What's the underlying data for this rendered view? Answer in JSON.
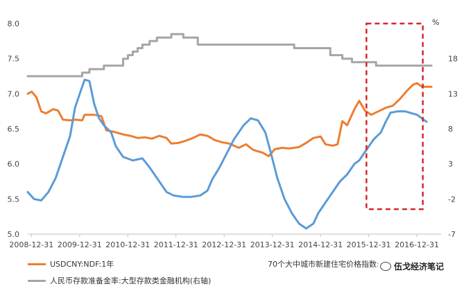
{
  "chart_data": {
    "type": "line",
    "x_ticks": [
      "2008-12-31",
      "2009-12-31",
      "2010-12-31",
      "2011-12-31",
      "2012-12-31",
      "2013-12-31",
      "2014-12-31",
      "2015-12-31",
      "2016-12-31"
    ],
    "x_range": [
      2008.92,
      2017.5
    ],
    "y_left": {
      "range": [
        5.0,
        8.0
      ],
      "ticks": [
        "5.0",
        "5.5",
        "6.0",
        "6.5",
        "7.0",
        "7.5",
        "8.0"
      ]
    },
    "y_right": {
      "range": [
        -7,
        23
      ],
      "ticks": [
        "-7",
        "-2",
        "3",
        "8",
        "13",
        "18",
        "23"
      ],
      "unit": "%"
    },
    "series": [
      {
        "name": "USDCNY:NDF:1年",
        "axis": "left",
        "color": "#ED7D31",
        "points": [
          [
            2008.92,
            7.0
          ],
          [
            2009.0,
            7.03
          ],
          [
            2009.1,
            6.95
          ],
          [
            2009.2,
            6.75
          ],
          [
            2009.3,
            6.72
          ],
          [
            2009.45,
            6.78
          ],
          [
            2009.55,
            6.76
          ],
          [
            2009.65,
            6.63
          ],
          [
            2009.8,
            6.62
          ],
          [
            2009.92,
            6.63
          ],
          [
            2010.05,
            6.62
          ],
          [
            2010.1,
            6.7
          ],
          [
            2010.3,
            6.7
          ],
          [
            2010.45,
            6.68
          ],
          [
            2010.55,
            6.48
          ],
          [
            2010.7,
            6.46
          ],
          [
            2010.9,
            6.42
          ],
          [
            2011.05,
            6.4
          ],
          [
            2011.2,
            6.37
          ],
          [
            2011.35,
            6.38
          ],
          [
            2011.5,
            6.36
          ],
          [
            2011.65,
            6.4
          ],
          [
            2011.8,
            6.37
          ],
          [
            2011.9,
            6.29
          ],
          [
            2012.05,
            6.3
          ],
          [
            2012.2,
            6.33
          ],
          [
            2012.35,
            6.37
          ],
          [
            2012.5,
            6.42
          ],
          [
            2012.65,
            6.4
          ],
          [
            2012.8,
            6.34
          ],
          [
            2012.95,
            6.31
          ],
          [
            2013.1,
            6.29
          ],
          [
            2013.3,
            6.23
          ],
          [
            2013.45,
            6.28
          ],
          [
            2013.6,
            6.2
          ],
          [
            2013.8,
            6.16
          ],
          [
            2013.92,
            6.11
          ],
          [
            2014.05,
            6.21
          ],
          [
            2014.2,
            6.23
          ],
          [
            2014.35,
            6.22
          ],
          [
            2014.55,
            6.24
          ],
          [
            2014.7,
            6.3
          ],
          [
            2014.85,
            6.37
          ],
          [
            2015.0,
            6.39
          ],
          [
            2015.1,
            6.28
          ],
          [
            2015.25,
            6.26
          ],
          [
            2015.35,
            6.28
          ],
          [
            2015.45,
            6.61
          ],
          [
            2015.55,
            6.55
          ],
          [
            2015.7,
            6.78
          ],
          [
            2015.8,
            6.9
          ],
          [
            2015.92,
            6.76
          ],
          [
            2016.05,
            6.7
          ],
          [
            2016.2,
            6.75
          ],
          [
            2016.35,
            6.8
          ],
          [
            2016.5,
            6.83
          ],
          [
            2016.65,
            6.93
          ],
          [
            2016.8,
            7.05
          ],
          [
            2016.92,
            7.13
          ],
          [
            2017.0,
            7.15
          ],
          [
            2017.1,
            7.1
          ],
          [
            2017.3,
            7.1
          ]
        ]
      },
      {
        "name": "70个大中城市新建住宅价格指数:同比(右轴)",
        "axis": "right",
        "color": "#5B9BD5",
        "points": [
          [
            2008.92,
            -1.0
          ],
          [
            2009.05,
            -2.0
          ],
          [
            2009.2,
            -2.2
          ],
          [
            2009.35,
            -1.0
          ],
          [
            2009.5,
            1.0
          ],
          [
            2009.65,
            4.0
          ],
          [
            2009.8,
            7.0
          ],
          [
            2009.9,
            11.0
          ],
          [
            2010.0,
            13.0
          ],
          [
            2010.1,
            15.0
          ],
          [
            2010.2,
            14.8
          ],
          [
            2010.3,
            11.5
          ],
          [
            2010.4,
            9.5
          ],
          [
            2010.5,
            8.5
          ],
          [
            2010.65,
            7.5
          ],
          [
            2010.75,
            5.5
          ],
          [
            2010.9,
            4.0
          ],
          [
            2011.1,
            3.5
          ],
          [
            2011.3,
            3.8
          ],
          [
            2011.45,
            2.5
          ],
          [
            2011.6,
            1.0
          ],
          [
            2011.8,
            -1.0
          ],
          [
            2011.95,
            -1.5
          ],
          [
            2012.15,
            -1.7
          ],
          [
            2012.3,
            -1.7
          ],
          [
            2012.5,
            -1.5
          ],
          [
            2012.65,
            -0.8
          ],
          [
            2012.75,
            0.8
          ],
          [
            2012.9,
            2.5
          ],
          [
            2013.05,
            4.5
          ],
          [
            2013.2,
            6.5
          ],
          [
            2013.4,
            8.5
          ],
          [
            2013.55,
            9.5
          ],
          [
            2013.7,
            9.2
          ],
          [
            2013.85,
            7.5
          ],
          [
            2013.95,
            5.0
          ],
          [
            2014.1,
            1.0
          ],
          [
            2014.25,
            -2.0
          ],
          [
            2014.4,
            -4.0
          ],
          [
            2014.55,
            -5.5
          ],
          [
            2014.7,
            -6.2
          ],
          [
            2014.85,
            -5.5
          ],
          [
            2014.95,
            -4.0
          ],
          [
            2015.1,
            -2.5
          ],
          [
            2015.25,
            -1.0
          ],
          [
            2015.4,
            0.5
          ],
          [
            2015.55,
            1.5
          ],
          [
            2015.7,
            3.0
          ],
          [
            2015.8,
            3.5
          ],
          [
            2015.95,
            5.0
          ],
          [
            2016.1,
            6.5
          ],
          [
            2016.25,
            7.5
          ],
          [
            2016.35,
            9.0
          ],
          [
            2016.45,
            10.3
          ],
          [
            2016.6,
            10.5
          ],
          [
            2016.75,
            10.5
          ],
          [
            2016.9,
            10.2
          ],
          [
            2017.0,
            10.0
          ],
          [
            2017.1,
            9.5
          ],
          [
            2017.2,
            9.0
          ]
        ]
      },
      {
        "name": "人民币存款准备金率:大型存款类金融机构(右轴)",
        "axis": "right",
        "color": "#A5A5A5",
        "step": true,
        "points": [
          [
            2008.92,
            15.5
          ],
          [
            2009.9,
            15.5
          ],
          [
            2010.05,
            16.0
          ],
          [
            2010.2,
            16.5
          ],
          [
            2010.4,
            16.5
          ],
          [
            2010.5,
            17.0
          ],
          [
            2010.9,
            18.0
          ],
          [
            2011.0,
            18.5
          ],
          [
            2011.1,
            19.0
          ],
          [
            2011.2,
            19.5
          ],
          [
            2011.3,
            20.0
          ],
          [
            2011.45,
            20.5
          ],
          [
            2011.6,
            21.0
          ],
          [
            2011.9,
            21.5
          ],
          [
            2012.15,
            21.0
          ],
          [
            2012.45,
            20.0
          ],
          [
            2014.35,
            20.0
          ],
          [
            2014.45,
            19.5
          ],
          [
            2015.1,
            19.5
          ],
          [
            2015.2,
            18.5
          ],
          [
            2015.45,
            18.0
          ],
          [
            2015.65,
            17.5
          ],
          [
            2016.15,
            17.0
          ],
          [
            2017.3,
            17.0
          ]
        ]
      }
    ],
    "legend": [
      "USDCNY:NDF:1年",
      "70个大中城市新建住宅价格指数:同比(右轴)",
      "人民币存款准备金率:大型存款类金融机构(右轴)"
    ],
    "annotation": {
      "type": "dashed-rectangle",
      "color": "#D62728",
      "x_range": [
        2015.95,
        2017.12
      ]
    }
  },
  "legend_display": {
    "item1": "USDCNY:NDF:1年",
    "item2": "70个大中城市新建住宅价格指数:同比(右轴)",
    "item3": "人民币存款准备金率:大型存款类金融机构(右轴)"
  },
  "unit_label": "%",
  "watermark": "伍戈经济笔记"
}
